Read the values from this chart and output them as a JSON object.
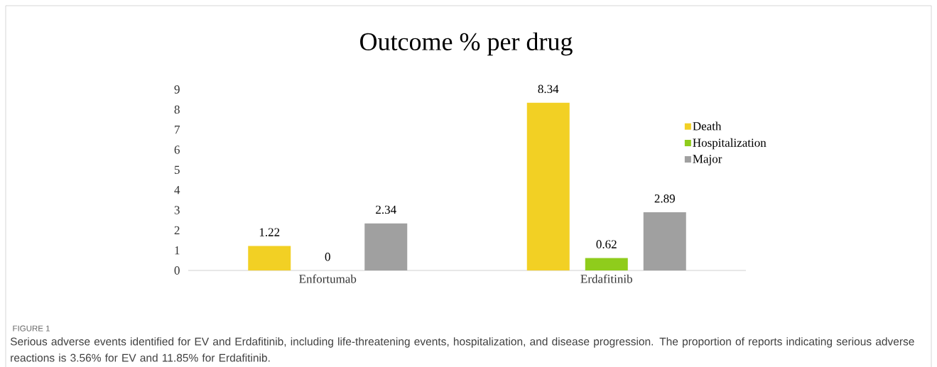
{
  "chart_data": {
    "type": "bar",
    "title": "Outcome % per drug",
    "categories": [
      "Enfortumab",
      "Erdafitinib"
    ],
    "series": [
      {
        "name": "Death",
        "color": "#f2d024",
        "values": [
          1.22,
          8.34
        ]
      },
      {
        "name": "Hospitalization",
        "color": "#8fcc1c",
        "values": [
          0,
          0.62
        ]
      },
      {
        "name": "Major",
        "color": "#a0a0a0",
        "values": [
          2.34,
          2.89
        ]
      }
    ],
    "ylim": [
      0,
      9
    ],
    "yticks": [
      0,
      1,
      2,
      3,
      4,
      5,
      6,
      7,
      8,
      9
    ],
    "grid": false,
    "legend": "right",
    "data_labels": true,
    "annotations": [
      "FIGURE 1",
      "Serious adverse events identified for EV and Erdafitinib, including life-threatening events, hospitalization, and disease progression. The proportion of reports indicating serious adverse reactions is 3.56% for EV and 11.85% for Erdafitinib."
    ]
  }
}
